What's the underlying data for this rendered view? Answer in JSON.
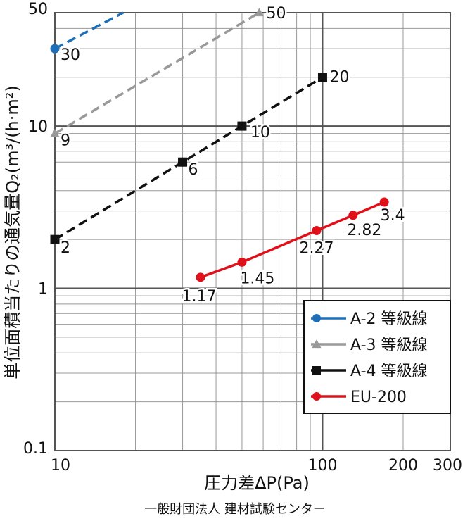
{
  "chart_data": {
    "type": "line",
    "x_scale": "log",
    "y_scale": "log",
    "xlabel": "圧力差ΔP(Pa)",
    "ylabel": "単位面積当たりの通気量Q₂(m³/(h·m²)",
    "xlim": [
      10,
      300
    ],
    "ylim": [
      0.1,
      50
    ],
    "x_tick_labels": [
      "10",
      "100",
      "200",
      "300"
    ],
    "y_tick_labels": [
      "0.1",
      "1",
      "10",
      "50"
    ],
    "grid": true,
    "legend_position": "lower-right",
    "series": [
      {
        "name": "A-2 等級線",
        "color": "#1f6fb8",
        "line_style": "dashed",
        "marker": "circle",
        "x": [
          10,
          18
        ],
        "y": [
          30,
          50
        ],
        "marked_points": [
          {
            "x": 10,
            "y": 30,
            "label": "30"
          }
        ]
      },
      {
        "name": "A-3 等級線",
        "color": "#999999",
        "line_style": "dashed",
        "marker": "triangle",
        "x": [
          10,
          58
        ],
        "y": [
          9,
          50
        ],
        "marked_points": [
          {
            "x": 10,
            "y": 9,
            "label": "9"
          },
          {
            "x": 58,
            "y": 50,
            "label": "50"
          }
        ]
      },
      {
        "name": "A-4 等級線",
        "color": "#111111",
        "line_style": "dashed",
        "marker": "square",
        "x": [
          10,
          100
        ],
        "y": [
          2,
          20
        ],
        "marked_points": [
          {
            "x": 10,
            "y": 2,
            "label": "2"
          },
          {
            "x": 30,
            "y": 6,
            "label": "6"
          },
          {
            "x": 50,
            "y": 10,
            "label": "10"
          },
          {
            "x": 100,
            "y": 20,
            "label": "20"
          }
        ]
      },
      {
        "name": "EU-200",
        "color": "#e0101a",
        "line_style": "solid",
        "marker": "circle",
        "x": [
          35,
          50,
          95,
          130,
          170
        ],
        "y": [
          1.17,
          1.45,
          2.27,
          2.82,
          3.4
        ],
        "marked_points": [
          {
            "x": 35,
            "y": 1.17,
            "label": "1.17"
          },
          {
            "x": 50,
            "y": 1.45,
            "label": "1.45"
          },
          {
            "x": 95,
            "y": 2.27,
            "label": "2.27"
          },
          {
            "x": 130,
            "y": 2.82,
            "label": "2.82"
          },
          {
            "x": 170,
            "y": 3.4,
            "label": "3.4"
          }
        ]
      }
    ]
  },
  "credit": "一般財団法人 建材試験センター"
}
